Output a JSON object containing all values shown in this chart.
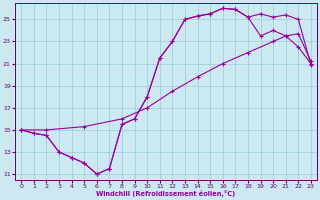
{
  "xlabel": "Windchill (Refroidissement éolien,°C)",
  "xlim": [
    -0.5,
    23.5
  ],
  "ylim": [
    10.5,
    26.5
  ],
  "yticks": [
    11,
    13,
    15,
    17,
    19,
    21,
    23,
    25
  ],
  "xticks": [
    0,
    1,
    2,
    3,
    4,
    5,
    6,
    7,
    8,
    9,
    10,
    11,
    12,
    13,
    14,
    15,
    16,
    17,
    18,
    19,
    20,
    21,
    22,
    23
  ],
  "bg_color": "#cce8f0",
  "line_color": "#990099",
  "grid_color": "#99ccdd",
  "line1_x": [
    0,
    1,
    2,
    3,
    4,
    5,
    6,
    7,
    8,
    9,
    10,
    11,
    12,
    13,
    14,
    15,
    16,
    17,
    18,
    19,
    20,
    21,
    22,
    23
  ],
  "line1_y": [
    15.0,
    14.7,
    14.5,
    13.0,
    12.5,
    12.0,
    11.0,
    11.5,
    15.5,
    16.0,
    18.0,
    21.5,
    23.0,
    25.0,
    25.3,
    25.5,
    26.0,
    25.9,
    25.2,
    25.5,
    25.2,
    25.4,
    25.0,
    20.9
  ],
  "line2_x": [
    0,
    1,
    2,
    3,
    4,
    5,
    6,
    7,
    8,
    9,
    10,
    11,
    12,
    13,
    14,
    15,
    16,
    17,
    18,
    19,
    20,
    21,
    22,
    23
  ],
  "line2_y": [
    15.0,
    14.7,
    14.5,
    13.0,
    12.5,
    12.0,
    11.0,
    11.5,
    15.5,
    16.0,
    18.0,
    21.5,
    23.0,
    25.0,
    25.3,
    25.5,
    26.0,
    25.9,
    25.2,
    23.5,
    24.0,
    23.5,
    23.7,
    21.2
  ],
  "line3_x": [
    0,
    2,
    5,
    8,
    10,
    12,
    14,
    16,
    18,
    20,
    21,
    22,
    23
  ],
  "line3_y": [
    15.0,
    15.0,
    15.3,
    16.0,
    17.0,
    18.5,
    19.8,
    21.0,
    22.0,
    23.0,
    23.5,
    22.5,
    21.0
  ]
}
